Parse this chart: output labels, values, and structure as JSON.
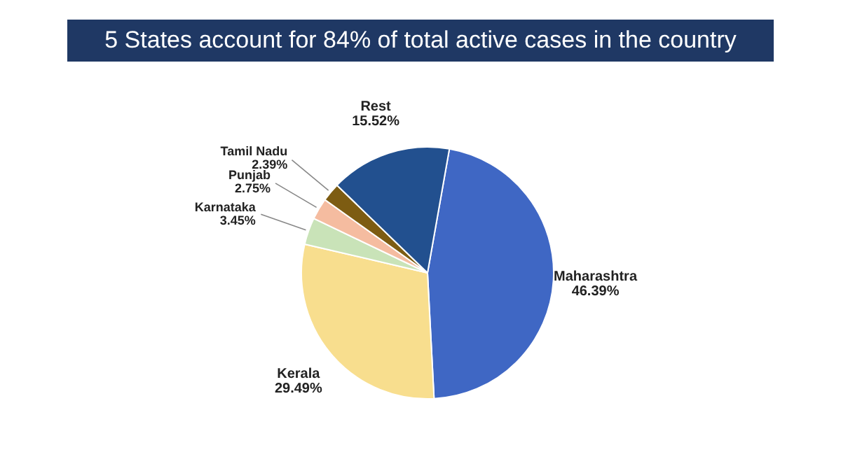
{
  "chart_data": {
    "type": "pie",
    "title": "5 States account for 84% of total active cases in the country",
    "categories": [
      "Maharashtra",
      "Kerala",
      "Karnataka",
      "Punjab",
      "Tamil Nadu",
      "Rest"
    ],
    "values": [
      46.39,
      29.49,
      3.45,
      2.75,
      2.39,
      15.52
    ],
    "colors": [
      "#3f67c4",
      "#f8de8e",
      "#c9e3b8",
      "#f5bca0",
      "#7d5c12",
      "#22508f"
    ],
    "value_labels": [
      "46.39%",
      "29.49%",
      "3.45%",
      "2.75%",
      "2.39%",
      "15.52%"
    ],
    "legend": false
  }
}
